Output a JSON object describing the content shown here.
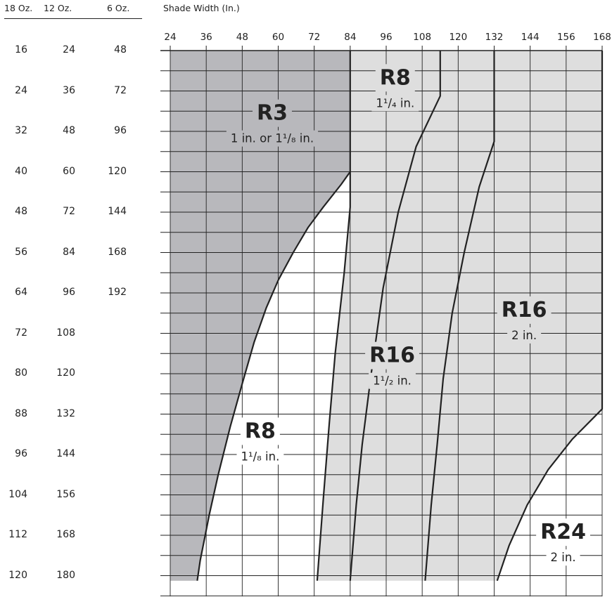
{
  "columns": {
    "oz18": {
      "header": "18 Oz.",
      "values": [
        "16",
        "24",
        "32",
        "40",
        "48",
        "56",
        "64",
        "72",
        "80",
        "88",
        "96",
        "104",
        "112",
        "120"
      ]
    },
    "oz12": {
      "header": "12 Oz.",
      "values": [
        "24",
        "36",
        "48",
        "60",
        "72",
        "84",
        "96",
        "108",
        "120",
        "132",
        "144",
        "156",
        "168",
        "180"
      ]
    },
    "oz6": {
      "header": "6 Oz.",
      "values": [
        "48",
        "72",
        "96",
        "120",
        "144",
        "168",
        "192"
      ]
    }
  },
  "chart_data": {
    "type": "area",
    "xlabel": "Shade Width (In.)",
    "xlim": [
      24,
      168
    ],
    "x_ticks": [
      24,
      36,
      48,
      60,
      72,
      84,
      96,
      108,
      120,
      132,
      144,
      156,
      168
    ],
    "ylim": [
      16,
      120
    ],
    "grid": true,
    "colors": {
      "dark_gray": "#b8b8bc",
      "light_gray": "#dedede",
      "white": "#ffffff",
      "line": "#222222"
    },
    "zones": [
      {
        "name": "R3",
        "size_text": "1 in. or 1¹/₈ in.",
        "fill": "dark_gray",
        "label_at": [
          58,
          30
        ],
        "polygon": [
          [
            24,
            16
          ],
          [
            84,
            16
          ],
          [
            84,
            40
          ],
          [
            81,
            42.5
          ],
          [
            75,
            47
          ],
          [
            70,
            51
          ],
          [
            65,
            56
          ],
          [
            60,
            61.5
          ],
          [
            56,
            67
          ],
          [
            52,
            73.7
          ],
          [
            48,
            82
          ],
          [
            44,
            90.5
          ],
          [
            40,
            100
          ],
          [
            37,
            108
          ],
          [
            34,
            117
          ],
          [
            33,
            121
          ],
          [
            24,
            121
          ]
        ]
      },
      {
        "name": "R8",
        "size_text": "1¹/₈ in.",
        "fill": "white",
        "label_at": [
          54,
          93
        ],
        "polygon": [
          [
            84,
            40
          ],
          [
            84,
            47
          ],
          [
            82,
            60
          ],
          [
            79,
            76
          ],
          [
            77,
            90
          ],
          [
            75,
            105
          ],
          [
            73,
            121
          ],
          [
            33,
            121
          ],
          [
            34,
            117
          ],
          [
            37,
            108
          ],
          [
            40,
            100
          ],
          [
            44,
            90.5
          ],
          [
            48,
            82
          ],
          [
            52,
            73.7
          ],
          [
            56,
            67
          ],
          [
            60,
            61.5
          ],
          [
            65,
            56
          ],
          [
            70,
            51
          ],
          [
            75,
            47
          ],
          [
            81,
            42.5
          ]
        ]
      },
      {
        "name": "R16",
        "size_text": "1¹/₂ in.",
        "fill": "light_gray",
        "label_at": [
          98,
          78
        ],
        "polygon": [
          [
            84,
            47
          ],
          [
            84,
            16
          ],
          [
            114,
            16
          ],
          [
            114,
            25
          ],
          [
            106,
            35
          ],
          [
            100,
            48
          ],
          [
            95,
            63
          ],
          [
            91,
            80
          ],
          [
            88,
            94
          ],
          [
            86,
            106
          ],
          [
            84,
            121
          ],
          [
            73,
            121
          ],
          [
            75,
            105
          ],
          [
            77,
            90
          ],
          [
            79,
            76
          ],
          [
            82,
            60
          ]
        ]
      },
      {
        "name": "R8",
        "size_text": "1¹/₄ in.",
        "fill": "light_gray",
        "label_at": [
          99,
          23
        ],
        "polygon": [
          [
            84,
            16
          ],
          [
            114,
            16
          ],
          [
            114,
            25
          ],
          [
            100,
            25
          ],
          [
            84,
            25
          ]
        ]
      },
      {
        "name": "R16",
        "size_text": "2 in.",
        "fill": "light_gray",
        "label_at": [
          142,
          69
        ],
        "polygon": [
          [
            132,
            16
          ],
          [
            168,
            16
          ],
          [
            168,
            87
          ],
          [
            158,
            93
          ],
          [
            150,
            99
          ],
          [
            143,
            106
          ],
          [
            137,
            114
          ],
          [
            133,
            121
          ],
          [
            84,
            121
          ],
          [
            86,
            106
          ],
          [
            88,
            94
          ],
          [
            91,
            80
          ],
          [
            95,
            63
          ],
          [
            100,
            48
          ],
          [
            106,
            35
          ],
          [
            114,
            25
          ],
          [
            114,
            16
          ],
          [
            132,
            16
          ],
          [
            132,
            34
          ]
        ]
      },
      {
        "name": "R24",
        "size_text": "2 in.",
        "fill": "white",
        "label_at": [
          155,
          113
        ],
        "polygon": [
          [
            168,
            87
          ],
          [
            168,
            121
          ],
          [
            133,
            121
          ],
          [
            137,
            114
          ],
          [
            143,
            106
          ],
          [
            150,
            99
          ],
          [
            158,
            93
          ]
        ]
      }
    ],
    "boundaries": [
      {
        "name": "R3 upper edge",
        "points": [
          [
            84,
            16
          ],
          [
            84,
            40
          ],
          [
            81,
            42.5
          ],
          [
            75,
            47
          ],
          [
            70,
            51
          ],
          [
            65,
            56
          ],
          [
            60,
            61.5
          ],
          [
            56,
            67
          ],
          [
            52,
            73.7
          ],
          [
            48,
            82
          ],
          [
            44,
            90.5
          ],
          [
            40,
            100
          ],
          [
            37,
            108
          ],
          [
            34,
            117
          ],
          [
            33,
            121
          ]
        ]
      },
      {
        "name": "R8 1-1/8 edge",
        "points": [
          [
            84,
            40
          ],
          [
            84,
            47
          ],
          [
            82,
            60
          ],
          [
            79,
            76
          ],
          [
            77,
            90
          ],
          [
            75,
            105
          ],
          [
            73,
            121
          ]
        ]
      },
      {
        "name": "R8 1-1/4 edge",
        "points": [
          [
            114,
            16
          ],
          [
            114,
            25
          ],
          [
            106,
            35
          ],
          [
            100,
            48
          ],
          [
            95,
            63
          ],
          [
            91,
            80
          ],
          [
            88,
            94
          ],
          [
            86,
            106
          ],
          [
            84,
            121
          ]
        ]
      },
      {
        "name": "R16 1-1/2 edge",
        "points": [
          [
            132,
            16
          ],
          [
            132,
            34
          ],
          [
            127,
            43
          ],
          [
            122,
            56
          ],
          [
            118,
            68
          ],
          [
            115,
            81
          ],
          [
            113,
            94
          ],
          [
            111,
            106
          ],
          [
            109,
            121
          ]
        ]
      },
      {
        "name": "R16 2in edge",
        "points": [
          [
            168,
            16
          ],
          [
            168,
            87
          ],
          [
            158,
            93
          ],
          [
            150,
            99
          ],
          [
            143,
            106
          ],
          [
            137,
            114
          ],
          [
            133,
            121
          ]
        ]
      }
    ]
  }
}
